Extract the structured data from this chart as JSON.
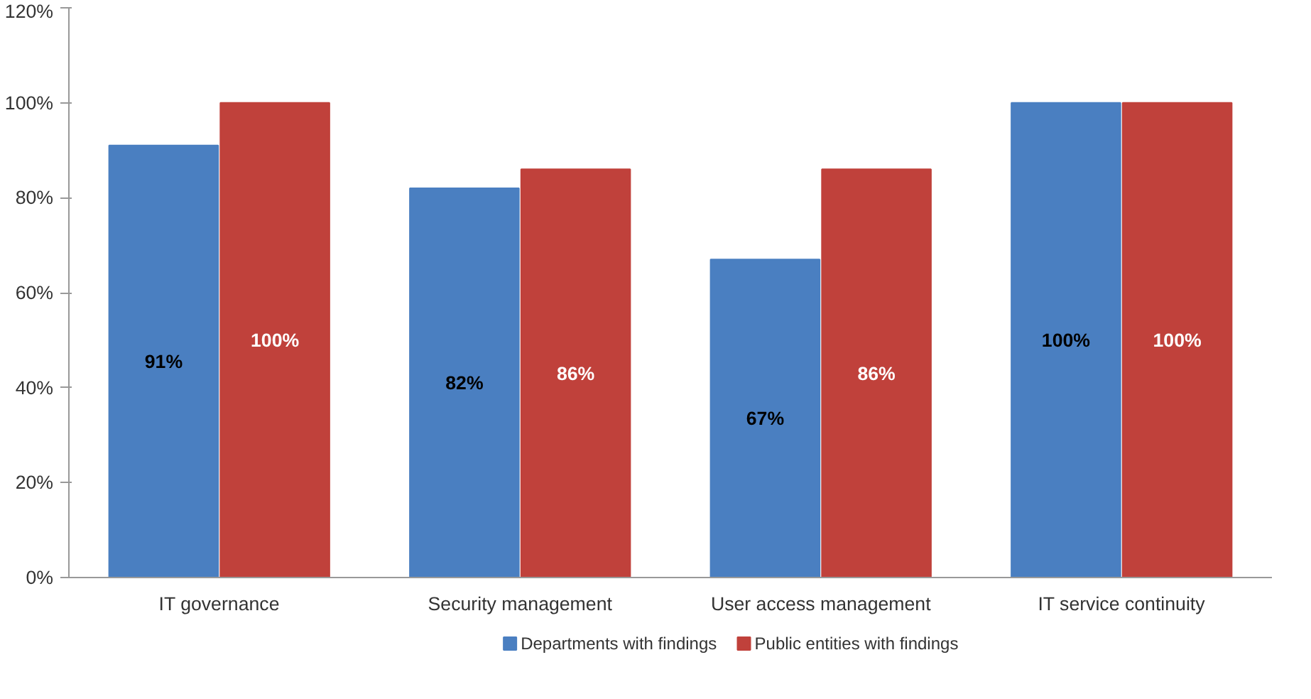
{
  "chart_data": {
    "type": "bar",
    "categories": [
      "IT governance",
      "Security management",
      "User access management",
      "IT service continuity"
    ],
    "series": [
      {
        "name": "Departments with findings",
        "color": "#4a7fc1",
        "values": [
          91,
          82,
          67,
          100
        ],
        "value_labels": [
          "91%",
          "82%",
          "67%",
          "100%"
        ]
      },
      {
        "name": "Public entities with findings",
        "color": "#c0413b",
        "values": [
          100,
          86,
          86,
          100
        ],
        "value_labels": [
          "100%",
          "86%",
          "86%",
          "100%"
        ]
      }
    ],
    "ylim": [
      0,
      120
    ],
    "yticks": [
      {
        "value": 0,
        "label": "0%"
      },
      {
        "value": 20,
        "label": "20%"
      },
      {
        "value": 40,
        "label": "40%"
      },
      {
        "value": 60,
        "label": "60%"
      },
      {
        "value": 80,
        "label": "80%"
      },
      {
        "value": 100,
        "label": "100%"
      },
      {
        "value": 120,
        "label": "120%"
      }
    ],
    "grid": false,
    "legend": "bottom"
  }
}
